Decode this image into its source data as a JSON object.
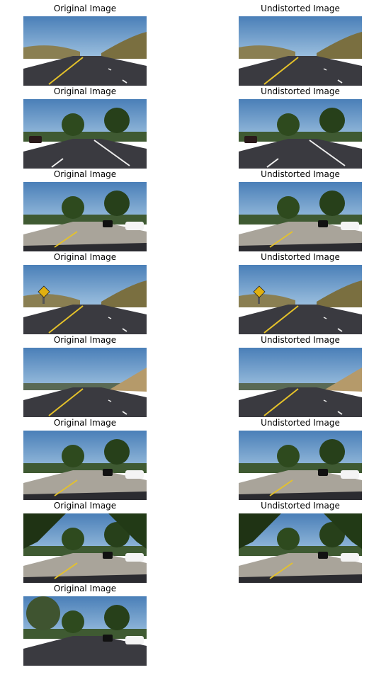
{
  "figure": {
    "rows": [
      {
        "left": {
          "title": "Original Image",
          "scene": "road-hills-yellow-line"
        },
        "right": {
          "title": "Undistorted Image",
          "scene": "road-hills-yellow-line"
        }
      },
      {
        "left": {
          "title": "Original Image",
          "scene": "road-trees-white-lines"
        },
        "right": {
          "title": "Undistorted Image",
          "scene": "road-trees-white-lines"
        }
      },
      {
        "left": {
          "title": "Original Image",
          "scene": "road-trees-cars-concrete"
        },
        "right": {
          "title": "Undistorted Image",
          "scene": "road-trees-cars-concrete"
        }
      },
      {
        "left": {
          "title": "Original Image",
          "scene": "road-sign-yellow-line"
        },
        "right": {
          "title": "Undistorted Image",
          "scene": "road-sign-yellow-line"
        }
      },
      {
        "left": {
          "title": "Original Image",
          "scene": "road-hill-right-yellow-line"
        },
        "right": {
          "title": "Undistorted Image",
          "scene": "road-hill-right-yellow-line"
        }
      },
      {
        "left": {
          "title": "Original Image",
          "scene": "road-trees-cars-shadow"
        },
        "right": {
          "title": "Undistorted Image",
          "scene": "road-trees-cars-shadow"
        }
      },
      {
        "left": {
          "title": "Original Image",
          "scene": "road-tree-canopy-cars"
        },
        "right": {
          "title": "Undistorted Image",
          "scene": "road-tree-canopy-cars"
        }
      },
      {
        "left": {
          "title": "Original Image",
          "scene": "road-tree-left-cars"
        },
        "right": null
      }
    ]
  },
  "colors": {
    "sky": "#4a7fb8",
    "sky_light": "#9fc2e0",
    "road": "#3a3a40",
    "concrete": "#a9a49a",
    "yellow_line": "#e5c22a",
    "hills": "#8a7f52",
    "trees": "#2e4a1e"
  }
}
